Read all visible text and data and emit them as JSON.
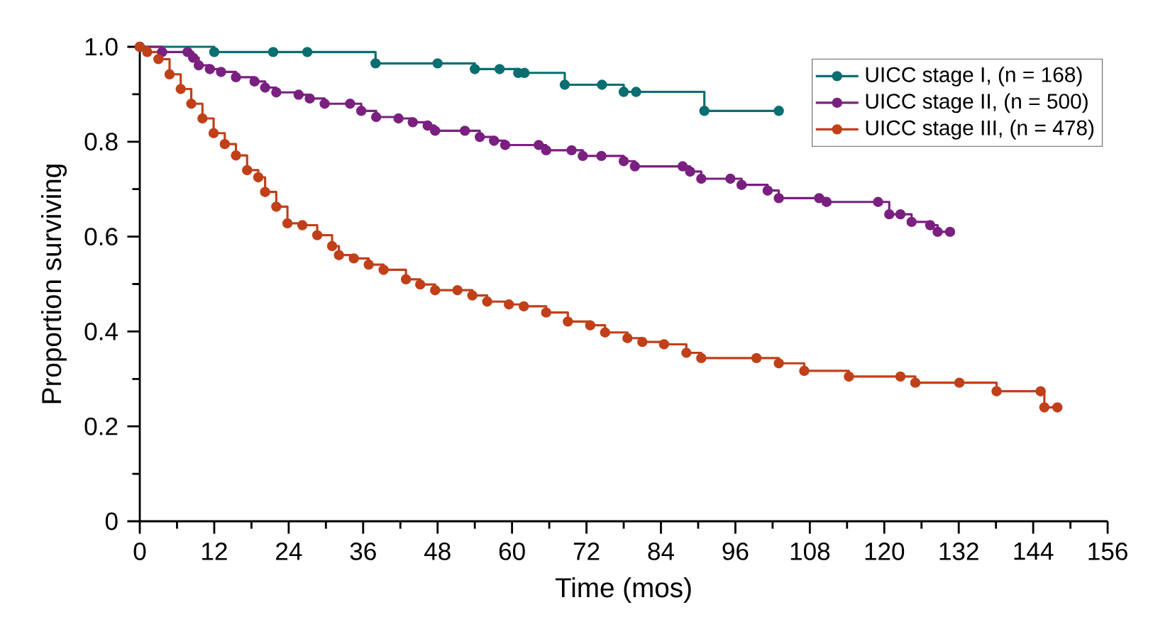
{
  "chart_data": {
    "type": "step",
    "xlabel": "Time (mos)",
    "ylabel": "Proportion surviving",
    "xlim": [
      0,
      156
    ],
    "xticks": [
      0,
      12,
      24,
      36,
      48,
      60,
      72,
      84,
      96,
      108,
      120,
      132,
      144,
      156
    ],
    "ylim": [
      0,
      1
    ],
    "yticks": [
      0,
      0.2,
      0.4,
      0.6,
      0.8,
      {
        "value": 1,
        "label": "1.0"
      }
    ],
    "legend": "top right",
    "marker": "circle",
    "line_style": "solid",
    "grid": false,
    "series": [
      {
        "name": "UICC stage I, (n = 168)",
        "color": "#0b6e70",
        "x": [
          0,
          12,
          21.5,
          27,
          38,
          48,
          54,
          58,
          61,
          62,
          68.5,
          74.5,
          78,
          80,
          91,
          103
        ],
        "values": [
          1.0,
          0.989,
          0.989,
          0.989,
          0.965,
          0.965,
          0.953,
          0.953,
          0.945,
          0.945,
          0.92,
          0.92,
          0.905,
          0.905,
          0.865,
          0.865
        ]
      },
      {
        "name": "UICC stage II, (n = 500)",
        "color": "#7a2080",
        "x": [
          0,
          3.6,
          7.7,
          8.6,
          9.5,
          11.3,
          13.1,
          15.5,
          18.5,
          20.2,
          22,
          25.6,
          27.4,
          29.8,
          33.9,
          35.7,
          38.1,
          41.7,
          44,
          46.4,
          47.6,
          52.4,
          54.8,
          57.1,
          58.9,
          64.3,
          65.5,
          69.6,
          71.4,
          74.4,
          78,
          79.8,
          87.5,
          88.7,
          90.5,
          95.2,
          97,
          101.2,
          103,
          109.5,
          110.7,
          119,
          120.8,
          122.6,
          124.4,
          127.4,
          128.6,
          130.6
        ],
        "values": [
          1.0,
          0.989,
          0.989,
          0.977,
          0.961,
          0.953,
          0.947,
          0.936,
          0.927,
          0.914,
          0.904,
          0.899,
          0.891,
          0.88,
          0.88,
          0.865,
          0.852,
          0.849,
          0.841,
          0.834,
          0.823,
          0.823,
          0.81,
          0.802,
          0.793,
          0.793,
          0.782,
          0.782,
          0.77,
          0.77,
          0.759,
          0.748,
          0.748,
          0.737,
          0.722,
          0.722,
          0.709,
          0.697,
          0.681,
          0.681,
          0.673,
          0.673,
          0.647,
          0.647,
          0.631,
          0.624,
          0.61,
          0.61
        ]
      },
      {
        "name": "UICC stage III, (n = 478)",
        "color": "#c0401a",
        "x": [
          0,
          1.2,
          3,
          4.8,
          6.6,
          8.3,
          10.1,
          11.9,
          13.7,
          15.5,
          17.3,
          19.1,
          20.2,
          22,
          23.8,
          26.2,
          28.6,
          31,
          32.1,
          34.5,
          36.9,
          39.3,
          42.9,
          45.2,
          47.6,
          51.2,
          53.6,
          56,
          59.5,
          61.9,
          65.5,
          69,
          72.6,
          75,
          78.6,
          81,
          84.5,
          88.1,
          90.5,
          99.4,
          103,
          107.1,
          114.3,
          122.6,
          125,
          132.1,
          138.1,
          145.2,
          145.8,
          147.9
        ],
        "values": [
          1.0,
          0.989,
          0.974,
          0.942,
          0.911,
          0.88,
          0.849,
          0.818,
          0.795,
          0.771,
          0.74,
          0.725,
          0.694,
          0.663,
          0.628,
          0.624,
          0.603,
          0.58,
          0.561,
          0.554,
          0.541,
          0.53,
          0.51,
          0.499,
          0.487,
          0.487,
          0.476,
          0.463,
          0.457,
          0.453,
          0.44,
          0.421,
          0.413,
          0.398,
          0.386,
          0.378,
          0.373,
          0.355,
          0.344,
          0.344,
          0.333,
          0.317,
          0.305,
          0.305,
          0.292,
          0.292,
          0.274,
          0.274,
          0.24,
          0.24
        ]
      }
    ]
  }
}
